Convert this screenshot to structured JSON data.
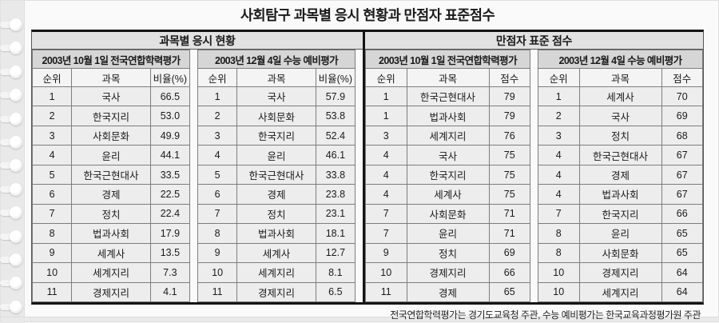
{
  "chart_data": {
    "type": "table",
    "title": "사회탐구 과목별 응시 현황과 만점자 표준점수",
    "footnote": "전국연합학력평가는 경기도교육청 주관, 수능 예비평가는 한국교육과정평가원 주관",
    "sections": [
      {
        "header": "과목별 응시 현황",
        "subtables": [
          {
            "title": "2003년 10월 1일 전국연합학력평가",
            "columns": [
              "순위",
              "과목",
              "비율(%)"
            ],
            "rows": [
              [
                "1",
                "국사",
                "66.5"
              ],
              [
                "2",
                "한국지리",
                "53.0"
              ],
              [
                "3",
                "사회문화",
                "49.9"
              ],
              [
                "4",
                "윤리",
                "44.1"
              ],
              [
                "5",
                "한국근현대사",
                "33.5"
              ],
              [
                "6",
                "경제",
                "22.5"
              ],
              [
                "7",
                "정치",
                "22.4"
              ],
              [
                "8",
                "법과사회",
                "17.9"
              ],
              [
                "9",
                "세계사",
                "13.5"
              ],
              [
                "10",
                "세계지리",
                "7.3"
              ],
              [
                "11",
                "경제지리",
                "4.1"
              ]
            ]
          },
          {
            "title": "2003년 12월 4일 수능 예비평가",
            "columns": [
              "순위",
              "과목",
              "비율(%)"
            ],
            "rows": [
              [
                "1",
                "국사",
                "57.9"
              ],
              [
                "2",
                "사회문화",
                "53.8"
              ],
              [
                "3",
                "한국지리",
                "52.4"
              ],
              [
                "4",
                "윤리",
                "46.1"
              ],
              [
                "5",
                "한국근현대사",
                "33.8"
              ],
              [
                "6",
                "경제",
                "23.8"
              ],
              [
                "7",
                "정치",
                "23.1"
              ],
              [
                "8",
                "법과사회",
                "18.1"
              ],
              [
                "9",
                "세계사",
                "12.7"
              ],
              [
                "10",
                "세계지리",
                "8.1"
              ],
              [
                "11",
                "경제지리",
                "6.5"
              ]
            ]
          }
        ]
      },
      {
        "header": "만점자 표준 점수",
        "subtables": [
          {
            "title": "2003년 10월 1일 전국연합학력평가",
            "columns": [
              "순위",
              "과목",
              "점수"
            ],
            "rows": [
              [
                "1",
                "한국근현대사",
                "79"
              ],
              [
                "1",
                "법과사회",
                "79"
              ],
              [
                "3",
                "세계지리",
                "76"
              ],
              [
                "4",
                "국사",
                "75"
              ],
              [
                "4",
                "한국지리",
                "75"
              ],
              [
                "4",
                "세계사",
                "75"
              ],
              [
                "7",
                "사회문화",
                "71"
              ],
              [
                "7",
                "윤리",
                "71"
              ],
              [
                "9",
                "정치",
                "69"
              ],
              [
                "10",
                "경제지리",
                "66"
              ],
              [
                "11",
                "경제",
                "65"
              ]
            ]
          },
          {
            "title": "2003년 12월 4일 수능 예비평가",
            "columns": [
              "순위",
              "과목",
              "점수"
            ],
            "rows": [
              [
                "1",
                "세계사",
                "70"
              ],
              [
                "2",
                "국사",
                "69"
              ],
              [
                "3",
                "정치",
                "68"
              ],
              [
                "4",
                "한국근현대사",
                "67"
              ],
              [
                "4",
                "경제",
                "67"
              ],
              [
                "4",
                "법과사회",
                "67"
              ],
              [
                "7",
                "한국지리",
                "66"
              ],
              [
                "8",
                "윤리",
                "65"
              ],
              [
                "8",
                "사회문화",
                "65"
              ],
              [
                "10",
                "경제지리",
                "64"
              ],
              [
                "10",
                "세계지리",
                "64"
              ]
            ]
          }
        ]
      }
    ],
    "colors": {
      "section_header_bg": "#e2e2e2",
      "date_header_bg": "#d6d6d6",
      "column_header_bg": "#f4f4f4",
      "cell_bg": "#ededed",
      "heavy_border": "#141414",
      "binding_strip": "#e9e9e9"
    }
  }
}
